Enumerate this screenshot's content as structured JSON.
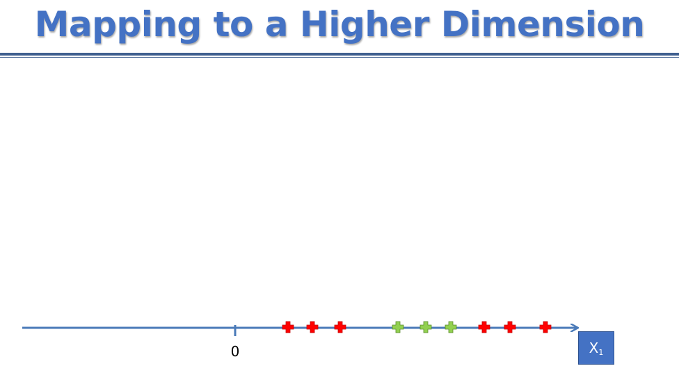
{
  "slide": {
    "title": "Mapping to a Higher Dimension"
  },
  "axis": {
    "zero_label": "0",
    "label_main": "X",
    "label_sub": "1",
    "line_color": "#4a7ab8"
  },
  "points": {
    "red_color": "#ff0000",
    "green_color": "#92d050",
    "order": [
      "red",
      "red",
      "red",
      "green",
      "green",
      "green",
      "red",
      "red",
      "red"
    ]
  }
}
